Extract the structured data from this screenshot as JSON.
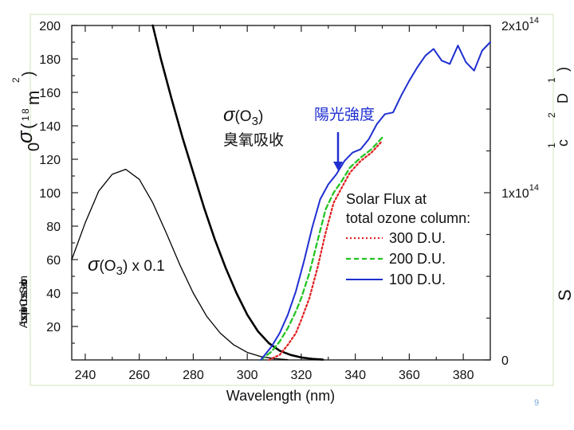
{
  "chart_data": {
    "type": "line",
    "xlabel": "Wavelength (nm)",
    "xlim": [
      235,
      390
    ],
    "xticks": [
      240,
      260,
      280,
      300,
      320,
      340,
      360,
      380
    ],
    "left_axis": {
      "ylim": [
        0,
        200
      ],
      "yticks": [
        20,
        40,
        60,
        80,
        100,
        120,
        140,
        160,
        180,
        200
      ]
    },
    "right_axis": {
      "ylim": [
        0,
        200000000000000
      ],
      "tick_values": [
        0,
        100000000000000,
        200000000000000
      ],
      "tick_labels": [
        {
          "mantissa": "0",
          "exp": ""
        },
        {
          "mantissa": "1x10",
          "exp": "14"
        },
        {
          "mantissa": "2x10",
          "exp": "14"
        }
      ]
    },
    "series": [
      {
        "name": "sigma_O3",
        "axis": "left",
        "color": "#000000",
        "width": 2.6,
        "x": [
          265,
          268,
          272,
          276,
          280,
          284,
          288,
          292,
          296,
          300,
          304,
          308,
          312,
          316,
          320,
          324,
          328
        ],
        "y": [
          200,
          180,
          156,
          133,
          112,
          91,
          72,
          55,
          40,
          27,
          17,
          10,
          5.5,
          3,
          1.5,
          0.6,
          0.2
        ]
      },
      {
        "name": "sigma_O3_x0.1",
        "axis": "left",
        "color": "#000000",
        "width": 1.3,
        "x": [
          235,
          240,
          245,
          250,
          255,
          260,
          265,
          270,
          275,
          280,
          285,
          290,
          295,
          300,
          305,
          310,
          315
        ],
        "y": [
          60,
          82,
          101,
          111,
          114,
          108,
          94,
          76,
          57,
          40,
          26,
          16,
          9,
          4.5,
          2,
          0.8,
          0.2
        ]
      },
      {
        "name": "300 D.U.",
        "axis": "right",
        "color": "#e02424",
        "dash": "2,3",
        "width": 2.3,
        "x": [
          308,
          312,
          315,
          318,
          320,
          323,
          326,
          329,
          332,
          335,
          338,
          342,
          346,
          350
        ],
        "y": [
          0,
          3000000000000,
          9000000000000,
          16000000000000,
          24000000000000,
          37000000000000,
          55000000000000,
          76000000000000,
          94000000000000,
          103000000000000,
          112000000000000,
          119000000000000,
          124000000000000,
          131000000000000
        ]
      },
      {
        "name": "200 D.U.",
        "axis": "right",
        "color": "#22c422",
        "dash": "6,4",
        "width": 2.3,
        "x": [
          305,
          309,
          312,
          315,
          318,
          320,
          323,
          326,
          329,
          332,
          335,
          338,
          342,
          346,
          350
        ],
        "y": [
          0,
          5000000000000,
          11000000000000,
          19000000000000,
          29000000000000,
          37000000000000,
          52000000000000,
          71000000000000,
          90000000000000,
          100000000000000,
          107000000000000,
          115000000000000,
          121000000000000,
          126000000000000,
          133000000000000
        ]
      },
      {
        "name": "100 D.U.",
        "axis": "right",
        "color": "#1f2fd0",
        "width": 2.0,
        "x": [
          305,
          309,
          312,
          315,
          318,
          321,
          324,
          327,
          330,
          333,
          336,
          339,
          342,
          345,
          348,
          351,
          354,
          357,
          360,
          363,
          366,
          369,
          372,
          375,
          378,
          381,
          384,
          387,
          390
        ],
        "y": [
          0,
          8000000000000,
          16000000000000,
          27000000000000,
          41000000000000,
          59000000000000,
          79000000000000,
          96000000000000,
          105000000000000,
          111000000000000,
          119000000000000,
          124000000000000,
          126000000000000,
          132000000000000,
          141000000000000,
          147000000000000,
          148000000000000,
          158000000000000,
          167000000000000,
          175000000000000,
          182000000000000,
          186000000000000,
          179000000000000,
          177000000000000,
          188000000000000,
          178000000000000,
          173000000000000,
          185000000000000,
          190000000000000
        ]
      }
    ],
    "annotations": {
      "sigma_label": "σ(O3)",
      "sigma_sub": "3",
      "cn_absorb": "臭氧吸收",
      "cn_solar": "陽光強度",
      "sigma_scaled": "σ(O3) x 0.1"
    },
    "legend": {
      "title_line1": "Solar Flux at",
      "title_line2": "total ozone column:",
      "entries": [
        "300 D.U.",
        "200 D.U.",
        "100 D.U."
      ]
    },
    "left_axis_fragments": {
      "sigma_glyph": "σ",
      "paren_top": "(",
      "zero": "0",
      "m_glyph": "m",
      "two": "2",
      "paren_close": ")",
      "sub_a": "1",
      "sub_b": "8",
      "lower_label": "Absorption Cross Section"
    },
    "right_axis_fragments": {
      "one_a": "1",
      "two_a": "2",
      "one_b": "1",
      "paren": ")",
      "cm_c": "c",
      "cm_d": "D",
      "big_s": "S"
    },
    "page_number": "9"
  }
}
